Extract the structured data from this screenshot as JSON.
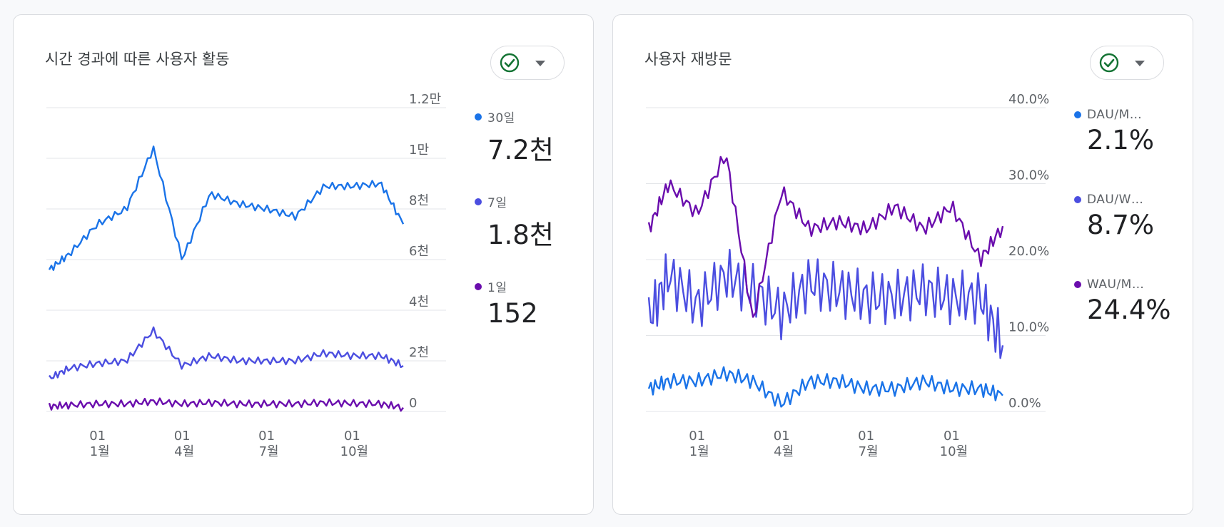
{
  "cards": [
    {
      "title": "시간 경과에 따른 사용자 활동",
      "legend": [
        {
          "label": "30일",
          "value": "7.2천",
          "color": "#1a73e8"
        },
        {
          "label": "7일",
          "value": "1.8천",
          "color": "#4b4ee0"
        },
        {
          "label": "1일",
          "value": "152",
          "color": "#6a0dad"
        }
      ]
    },
    {
      "title": "사용자 재방문",
      "legend": [
        {
          "label": "DAU/M…",
          "value": "2.1%",
          "color": "#1a73e8"
        },
        {
          "label": "DAU/W…",
          "value": "8.7%",
          "color": "#4b4ee0"
        },
        {
          "label": "WAU/M…",
          "value": "24.4%",
          "color": "#6a0dad"
        }
      ]
    }
  ],
  "chart_data": [
    {
      "type": "line",
      "title": "시간 경과에 따른 사용자 활동",
      "x": [
        "2023-11-10",
        "2023-12-01",
        "2024-01-01",
        "2024-02-01",
        "2024-03-01",
        "2024-04-01",
        "2024-05-01",
        "2024-06-01",
        "2024-07-01",
        "2024-08-01",
        "2024-09-01",
        "2024-10-01",
        "2024-11-01",
        "2024-11-25"
      ],
      "x_ticks": [
        {
          "day": "01",
          "month": "1월"
        },
        {
          "day": "01",
          "month": "4월"
        },
        {
          "day": "01",
          "month": "7월"
        },
        {
          "day": "01",
          "month": "10월"
        }
      ],
      "y_ticks": [
        "0",
        "2천",
        "4천",
        "6천",
        "8천",
        "1만",
        "1.2만"
      ],
      "ylim": [
        0,
        12000
      ],
      "series": [
        {
          "name": "30일",
          "color": "#1a73e8",
          "values": [
            5600,
            6200,
            7400,
            8000,
            10400,
            6000,
            8600,
            8200,
            8000,
            7700,
            8900,
            8900,
            9000,
            7400
          ]
        },
        {
          "name": "7일",
          "color": "#4b4ee0",
          "values": [
            1300,
            1700,
            1900,
            2000,
            3200,
            1800,
            2200,
            2000,
            2000,
            2000,
            2300,
            2200,
            2200,
            1800
          ]
        },
        {
          "name": "1일",
          "color": "#6a0dad",
          "values": [
            200,
            250,
            300,
            300,
            400,
            300,
            350,
            300,
            300,
            300,
            350,
            320,
            300,
            152
          ]
        }
      ]
    },
    {
      "type": "line",
      "title": "사용자 재방문",
      "x": [
        "2023-11-10",
        "2023-12-01",
        "2024-01-01",
        "2024-02-01",
        "2024-03-01",
        "2024-04-01",
        "2024-05-01",
        "2024-06-01",
        "2024-07-01",
        "2024-08-01",
        "2024-09-01",
        "2024-10-01",
        "2024-11-01",
        "2024-11-25"
      ],
      "x_ticks": [
        {
          "day": "01",
          "month": "1월"
        },
        {
          "day": "01",
          "month": "4월"
        },
        {
          "day": "01",
          "month": "7월"
        },
        {
          "day": "01",
          "month": "10월"
        }
      ],
      "y_ticks": [
        "0.0%",
        "10.0%",
        "20.0%",
        "30.0%",
        "40.0%"
      ],
      "ylim": [
        0,
        40
      ],
      "series": [
        {
          "name": "DAU/M…",
          "color": "#1a73e8",
          "values": [
            3,
            4,
            4,
            5,
            4,
            1,
            4,
            4,
            3,
            3,
            4,
            3,
            3,
            2.1
          ]
        },
        {
          "name": "DAU/W…",
          "color": "#4b4ee0",
          "values": [
            12,
            18,
            14,
            18,
            16,
            13,
            17,
            16,
            15,
            15,
            16,
            15,
            15,
            8.7
          ]
        },
        {
          "name": "WAU/M…",
          "color": "#6a0dad",
          "values": [
            24,
            30,
            26,
            34,
            12,
            29,
            24,
            25,
            24,
            27,
            24,
            27,
            20,
            24.4
          ]
        }
      ]
    }
  ]
}
